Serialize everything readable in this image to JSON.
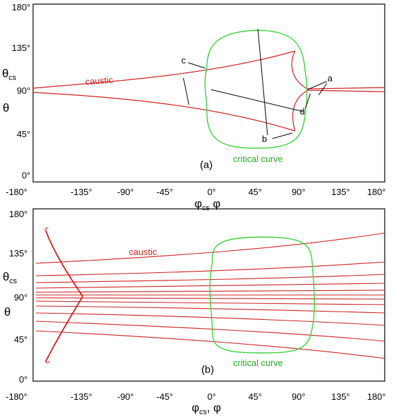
{
  "axes": {
    "y_ticks": [
      "0°",
      "45°",
      "90°",
      "135°",
      "180°"
    ],
    "x_ticks": [
      "-180°",
      "-135°",
      "-90°",
      "-45°",
      "0°",
      "45°",
      "90°",
      "135°",
      "180°"
    ]
  },
  "panel_a": {
    "tag": "(a)",
    "ylabel_top": "θ",
    "ylabel_top_sub": "cs",
    "ylabel_bottom": "θ",
    "xlabel_main": "φ",
    "xlabel_sub": "cs",
    "xlabel_rest": " φ",
    "caustic_label": "caustic",
    "critical_label": "critical curve",
    "marker_a": "a",
    "marker_b": "b",
    "marker_c": "c",
    "marker_d": "d"
  },
  "panel_b": {
    "tag": "(b)",
    "ylabel_top": "θ",
    "ylabel_top_sub": "cs",
    "ylabel_bottom": "θ",
    "xlabel_main": "φ",
    "xlabel_sub": "cs",
    "xlabel_rest": ", φ",
    "caustic_label": "caustic",
    "critical_label": "critical curve"
  },
  "colors": {
    "caustic": "#cc2020",
    "critical": "#3bd13b",
    "frame": "#000000"
  }
}
